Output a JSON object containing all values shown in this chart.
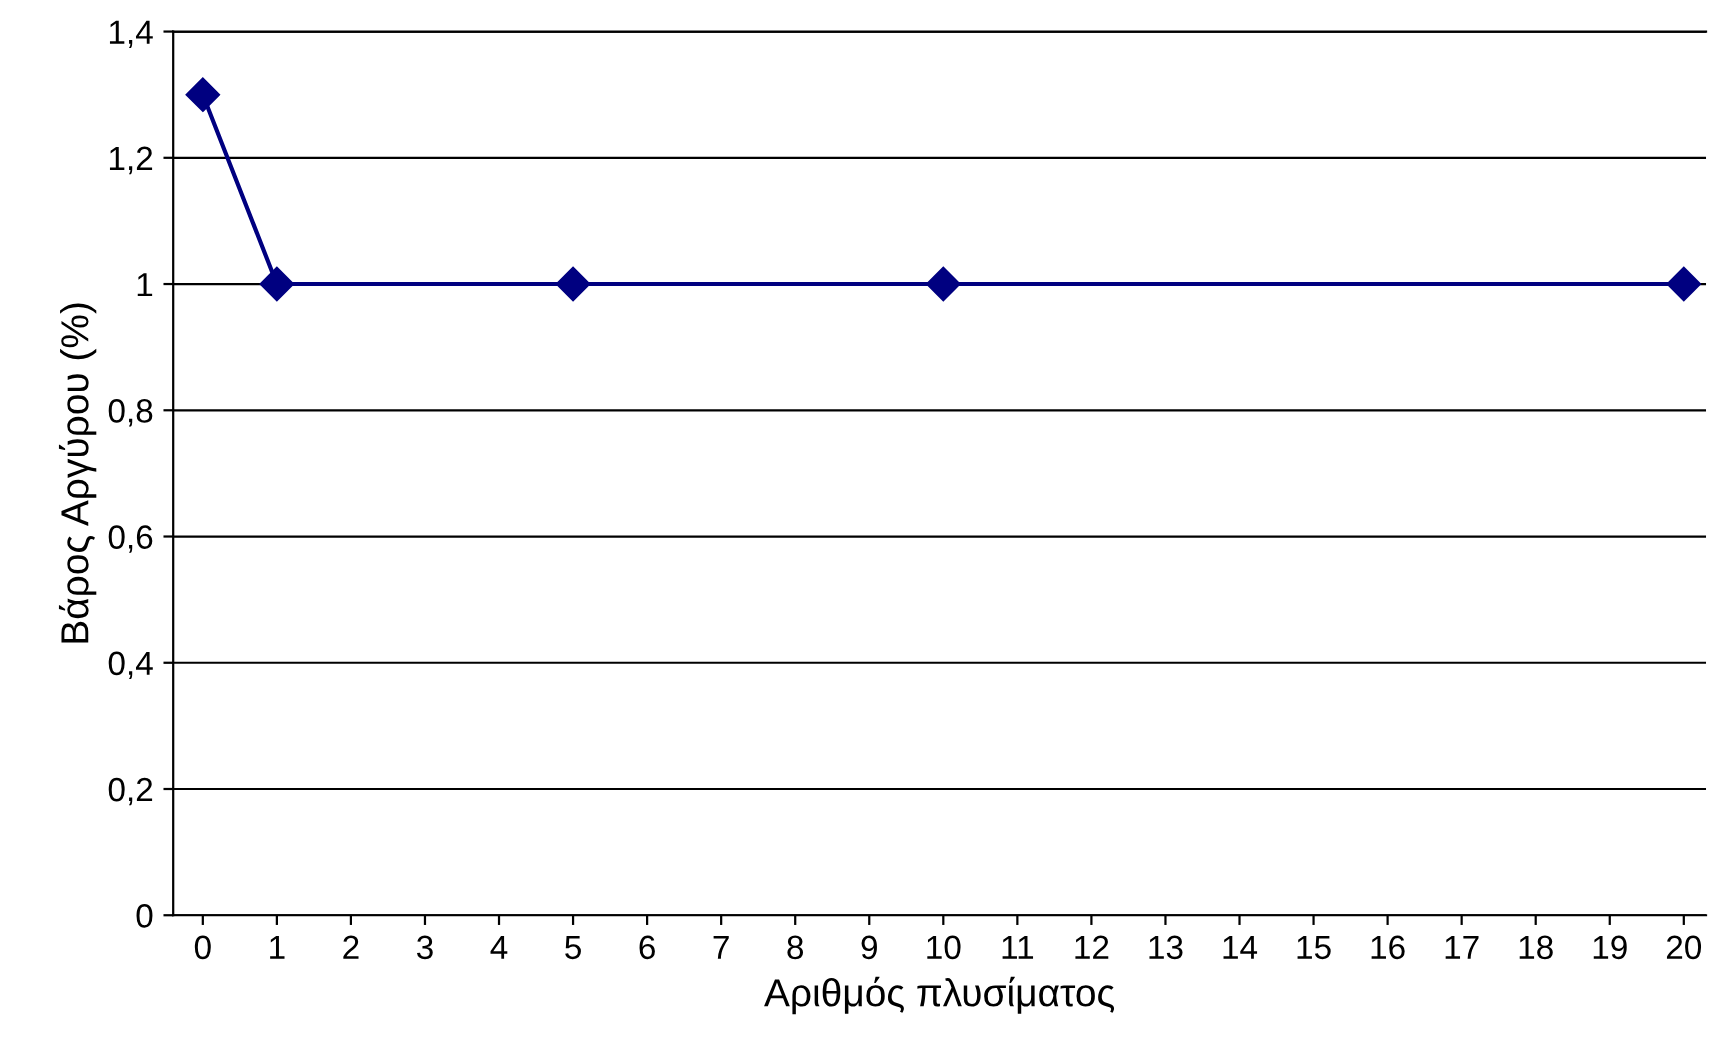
{
  "chart_data": {
    "type": "line",
    "xlabel": "Αριθμός πλυσίματος",
    "ylabel": "Βάρος Αργύρου (%)",
    "x": [
      0,
      1,
      5,
      10,
      20
    ],
    "series": [
      {
        "color": "#000080",
        "values": [
          1.3,
          1.0,
          1.0,
          1.0,
          1.0
        ]
      }
    ],
    "xlim": [
      -0.4,
      20.3
    ],
    "xticks": [
      0,
      1,
      2,
      3,
      4,
      5,
      6,
      7,
      8,
      9,
      10,
      11,
      12,
      13,
      14,
      15,
      16,
      17,
      18,
      19,
      20
    ],
    "ylim": [
      0,
      1.4
    ],
    "yticks": [
      0,
      {
        "value": 0.2,
        "label": "0,2"
      },
      {
        "value": 0.4,
        "label": "0,4"
      },
      {
        "value": 0.6,
        "label": "0,6"
      },
      {
        "value": 0.8,
        "label": "0,8"
      },
      1,
      {
        "value": 1.2,
        "label": "1,2"
      },
      {
        "value": 1.4,
        "label": "1,4"
      }
    ],
    "grid": "y",
    "marker": "diamond",
    "line_style": "solid"
  }
}
